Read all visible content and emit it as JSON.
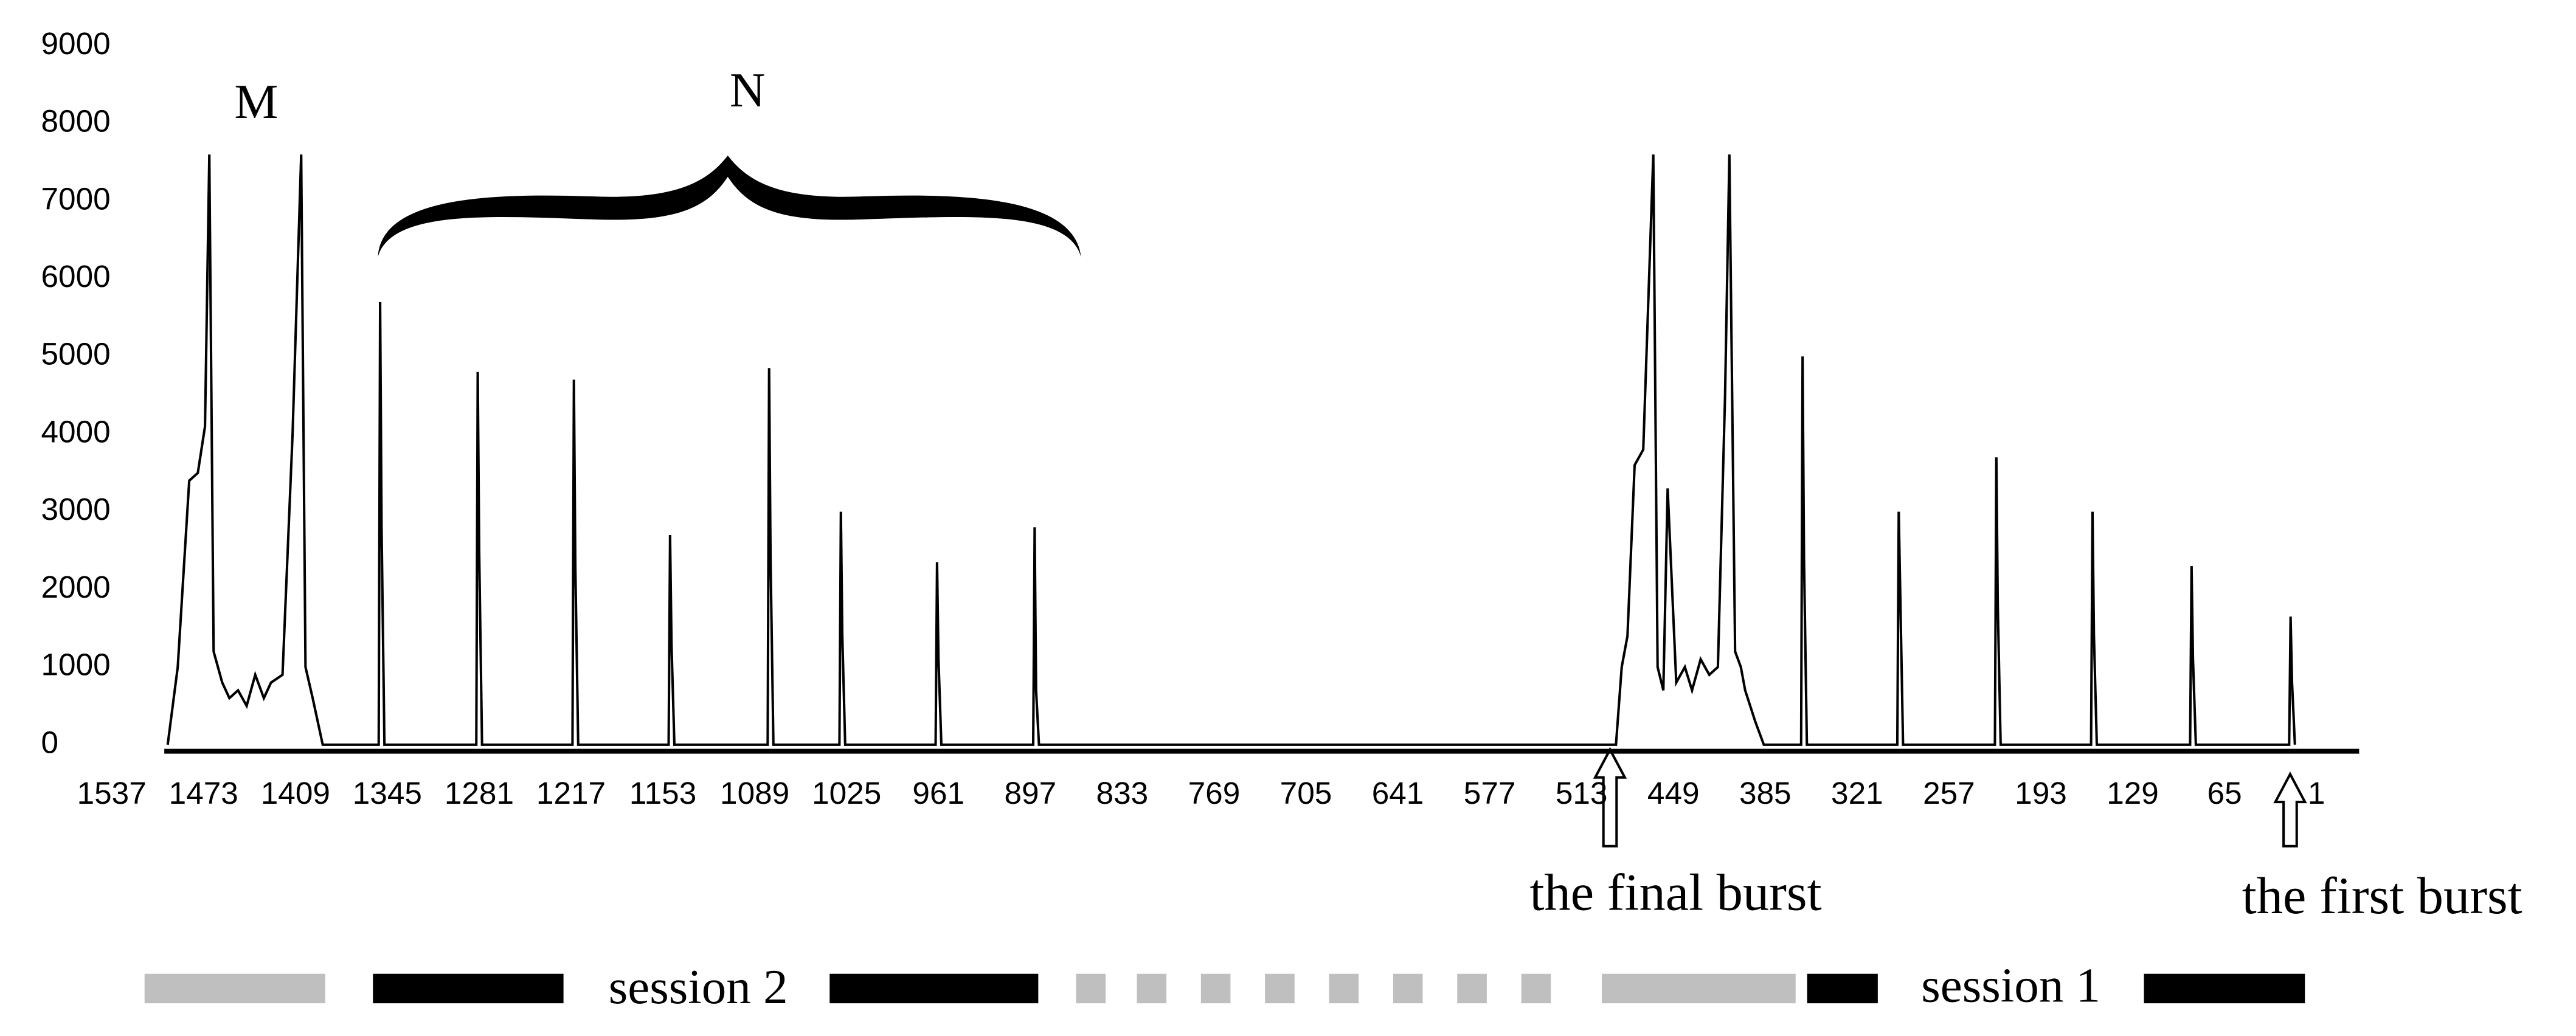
{
  "chart_data": {
    "type": "line",
    "color": "#000000",
    "xlim": [
      1537,
      1
    ],
    "xticks": [
      1537,
      1473,
      1409,
      1345,
      1281,
      1217,
      1153,
      1089,
      1025,
      961,
      897,
      833,
      769,
      705,
      641,
      577,
      513,
      449,
      385,
      321,
      257,
      193,
      129,
      65,
      1
    ],
    "ylim": [
      0,
      9000
    ],
    "yticks": [
      0,
      1000,
      2000,
      3000,
      4000,
      5000,
      6000,
      7000,
      8000,
      9000
    ],
    "grid": false,
    "annotations": [
      "M",
      "N",
      "the final burst",
      "the first burst",
      "session 2",
      "session 1"
    ],
    "x": [
      1498,
      1491,
      1483,
      1477,
      1472,
      1469,
      1466,
      1460,
      1455,
      1449,
      1443,
      1437,
      1431,
      1426,
      1418,
      1411,
      1405,
      1402,
      1397,
      1390,
      1351,
      1350,
      1349,
      1347,
      1283,
      1282,
      1281,
      1279,
      1216,
      1215,
      1214,
      1212,
      1149,
      1148,
      1147,
      1145,
      1080,
      1079,
      1078,
      1076,
      1030,
      1029,
      1028,
      1026,
      963,
      962,
      961,
      959,
      895,
      894,
      893,
      891,
      489,
      485,
      481,
      476,
      470,
      463,
      460,
      456,
      453,
      447,
      441,
      436,
      430,
      424,
      418,
      413,
      410,
      406,
      402,
      399,
      392,
      386,
      360,
      359,
      358,
      356,
      293,
      292,
      291,
      289,
      225,
      224,
      223,
      221,
      158,
      157,
      156,
      154,
      89,
      88,
      87,
      85,
      20,
      19,
      18,
      16
    ],
    "values": [
      0,
      1000,
      3400,
      3500,
      4100,
      7600,
      1200,
      800,
      600,
      700,
      500,
      900,
      600,
      800,
      900,
      4000,
      7600,
      1000,
      600,
      0,
      0,
      5700,
      2800,
      0,
      0,
      4800,
      2500,
      0,
      0,
      4700,
      2300,
      0,
      0,
      2700,
      1300,
      0,
      0,
      4850,
      2400,
      0,
      0,
      3000,
      1400,
      0,
      0,
      2350,
      1100,
      0,
      0,
      2800,
      700,
      0,
      0,
      1000,
      1400,
      3600,
      3800,
      7600,
      1000,
      700,
      3300,
      800,
      1000,
      700,
      1100,
      900,
      1000,
      4500,
      7600,
      1200,
      1000,
      700,
      300,
      0,
      0,
      5000,
      2400,
      0,
      0,
      3000,
      2000,
      0,
      0,
      3700,
      1800,
      0,
      0,
      3000,
      1400,
      0,
      0,
      2300,
      1100,
      0,
      0,
      1650,
      800,
      0
    ]
  }
}
